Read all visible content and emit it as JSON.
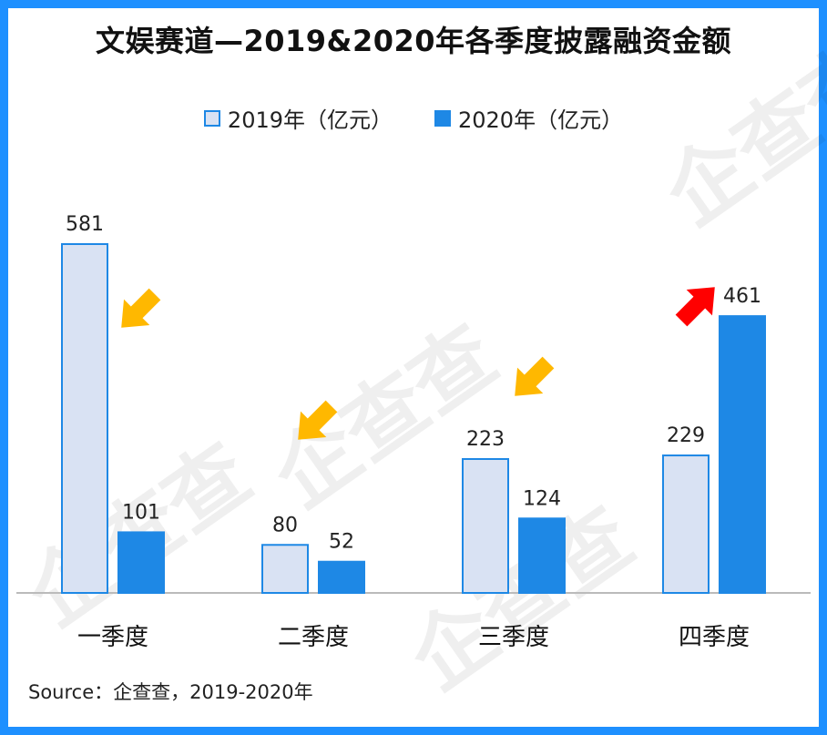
{
  "chart_data": {
    "type": "bar",
    "title": "文娱赛道—2019&2020年各季度披露融资金额",
    "categories": [
      "一季度",
      "二季度",
      "三季度",
      "四季度"
    ],
    "series": [
      {
        "name": "2019年（亿元）",
        "values": [
          581,
          80,
          223,
          229
        ],
        "color": "#D9E2F3",
        "stroke": "#1E88E5"
      },
      {
        "name": "2020年（亿元）",
        "values": [
          101,
          52,
          124,
          461
        ],
        "color": "#1E88E5",
        "stroke": "#1E88E5"
      }
    ],
    "data_labels": [
      [
        "581",
        "101"
      ],
      [
        "80",
        "52"
      ],
      [
        "223",
        "124"
      ],
      [
        "229",
        "461"
      ]
    ],
    "trend_arrows": [
      "down",
      "down",
      "down",
      "up"
    ],
    "arrow_colors": {
      "down": "#FFB800",
      "up": "#FF0000"
    },
    "xlabel": "",
    "ylabel": "",
    "ylim": [
      0,
      600
    ],
    "grid": false,
    "legend_position": "top-center"
  },
  "source": "Source：企查查，2019-2020年",
  "watermark": "企查查",
  "colors": {
    "frame": "#1E90FF",
    "axis": "#BBBBBB"
  }
}
